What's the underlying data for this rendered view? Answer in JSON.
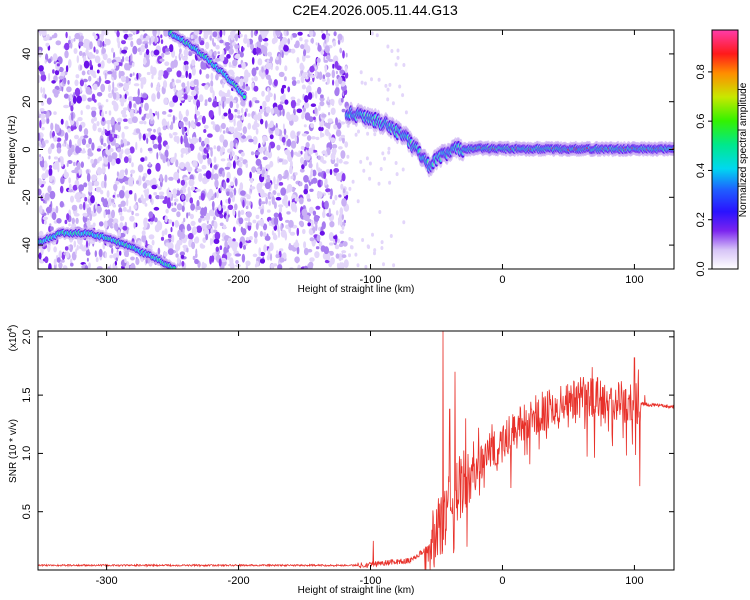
{
  "title": "C2E4.2026.005.11.44.G13",
  "chart_data": [
    {
      "type": "heatmap",
      "name": "spectrogram",
      "xlabel": "Height of straight line (km)",
      "ylabel": "Frequency (Hz)",
      "xlim": [
        -352,
        130
      ],
      "ylim": [
        -50,
        50
      ],
      "xticks": [
        -300,
        -200,
        -100,
        0,
        100
      ],
      "yticks": [
        -40,
        -20,
        0,
        20,
        40
      ],
      "noise_region_end_km": -118,
      "tracks": [
        {
          "name": "upper-diagonal",
          "points": [
            [
              -252,
              49
            ],
            [
              -232,
              42
            ],
            [
              -210,
              31
            ],
            [
              -195,
              22
            ]
          ]
        },
        {
          "name": "lower-left",
          "points": [
            [
              -352,
              -39
            ],
            [
              -335,
              -35
            ],
            [
              -315,
              -35
            ],
            [
              -300,
              -37
            ],
            [
              -285,
              -40
            ],
            [
              -265,
              -45
            ],
            [
              -248,
              -50
            ]
          ]
        },
        {
          "name": "main-signal",
          "points": [
            [
              -118,
              15
            ],
            [
              -105,
              14
            ],
            [
              -90,
              11
            ],
            [
              -75,
              6
            ],
            [
              -62,
              -2
            ],
            [
              -55,
              -7
            ],
            [
              -48,
              -3
            ],
            [
              -35,
              0
            ],
            [
              -20,
              0.5
            ],
            [
              0,
              0.3
            ],
            [
              50,
              0.2
            ],
            [
              130,
              0.2
            ]
          ]
        }
      ],
      "colorbar": {
        "label": "Normalized spectral amplitude",
        "ticks": [
          0.0,
          0.2,
          0.4,
          0.6,
          0.8
        ],
        "range": [
          0,
          0.97
        ]
      }
    },
    {
      "type": "line",
      "name": "snr",
      "xlabel": "Height of straight line (km)",
      "ylabel": "SNR (10 * v/v)",
      "multiplier": "(x10",
      "multiplier_exp": "4",
      "multiplier_close": ")",
      "xlim": [
        -352,
        130
      ],
      "ylim": [
        0,
        2.05
      ],
      "xticks": [
        -300,
        -200,
        -100,
        0,
        100
      ],
      "yticks": [
        0.5,
        1.0,
        1.5,
        2.0
      ],
      "color": "#e8312a",
      "envelope": [
        [
          -352,
          0.04
        ],
        [
          -110,
          0.04
        ],
        [
          -100,
          0.05
        ],
        [
          -70,
          0.08
        ],
        [
          -55,
          0.2
        ],
        [
          -48,
          0.35
        ],
        [
          -42,
          0.5
        ],
        [
          -38,
          0.6
        ],
        [
          -30,
          0.75
        ],
        [
          -20,
          0.9
        ],
        [
          -10,
          1.0
        ],
        [
          0,
          1.1
        ],
        [
          10,
          1.2
        ],
        [
          20,
          1.28
        ],
        [
          30,
          1.36
        ],
        [
          40,
          1.42
        ],
        [
          50,
          1.46
        ],
        [
          60,
          1.48
        ],
        [
          70,
          1.48
        ],
        [
          80,
          1.46
        ],
        [
          90,
          1.44
        ],
        [
          100,
          1.43
        ],
        [
          110,
          1.42
        ],
        [
          130,
          1.4
        ]
      ],
      "spikes": [
        [
          -98,
          0.25
        ],
        [
          -45,
          2.05
        ],
        [
          -40,
          1.38
        ],
        [
          -36,
          1.7
        ],
        [
          -28,
          1.3
        ],
        [
          -18,
          1.22
        ],
        [
          -8,
          1.25
        ],
        [
          5,
          1.32
        ],
        [
          22,
          1.38
        ],
        [
          38,
          1.5
        ],
        [
          68,
          1.74
        ],
        [
          72,
          1.65
        ],
        [
          82,
          1.55
        ],
        [
          90,
          1.62
        ],
        [
          100,
          1.82
        ],
        [
          103,
          1.72
        ],
        [
          104,
          0.72
        ],
        [
          108,
          1.5
        ]
      ]
    }
  ]
}
